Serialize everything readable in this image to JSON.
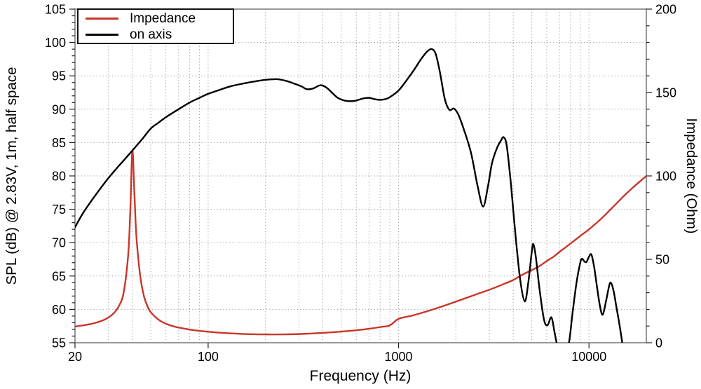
{
  "figure": {
    "background": "#ffffff",
    "frame_color": "#8c8c8c",
    "grid_color": "#9e9e9e",
    "tick_color": "#222222",
    "text_color": "#000000",
    "legend_border": "#111111"
  },
  "chart_data": {
    "type": "line",
    "title": "",
    "xlabel": "Frequency (Hz)",
    "ylabel_left": "SPL (dB) @ 2.83V, 1m, half space",
    "ylabel_right": "Impedance (Ohm)",
    "x_scale": "log",
    "xlim": [
      20,
      20000
    ],
    "ylim_left": [
      55,
      105
    ],
    "ylim_right": [
      0,
      200
    ],
    "x_major_ticks": [
      20,
      100,
      1000,
      10000
    ],
    "x_major_labels": [
      "20",
      "100",
      "1000",
      "10000"
    ],
    "x_minor_ticks": [
      30,
      40,
      50,
      60,
      70,
      80,
      90,
      100,
      200,
      300,
      400,
      500,
      600,
      700,
      800,
      900,
      1000,
      2000,
      3000,
      4000,
      5000,
      6000,
      7000,
      8000,
      9000,
      10000
    ],
    "y_left_major_step": 5,
    "y_left_minor_step": 1,
    "y_left_tick_labels": [
      "55",
      "60",
      "65",
      "70",
      "75",
      "80",
      "85",
      "90",
      "95",
      "100",
      "105"
    ],
    "y_right_major_step": 50,
    "y_right_minor_step": 10,
    "y_right_tick_labels": [
      "0",
      "50",
      "100",
      "150",
      "200"
    ],
    "grid": {
      "horizontal": "left-axis-majors",
      "vertical": "x-minors",
      "style": "dotted"
    },
    "legend": {
      "position": "top-left",
      "entries": [
        "Impedance",
        "on axis"
      ]
    },
    "series": [
      {
        "name": "Impedance",
        "axis": "right",
        "color": "#c9362b",
        "unit": "Ohm",
        "points": [
          [
            20,
            9.7
          ],
          [
            22,
            10.4
          ],
          [
            25,
            11.6
          ],
          [
            28,
            13.4
          ],
          [
            30,
            15.2
          ],
          [
            32,
            17.8
          ],
          [
            34,
            22
          ],
          [
            36,
            30
          ],
          [
            38,
            52
          ],
          [
            39,
            78
          ],
          [
            40,
            115
          ],
          [
            41,
            90
          ],
          [
            42,
            64
          ],
          [
            44,
            40
          ],
          [
            46,
            28
          ],
          [
            48,
            22
          ],
          [
            50,
            18.3
          ],
          [
            55,
            13.8
          ],
          [
            60,
            11.4
          ],
          [
            65,
            10.0
          ],
          [
            70,
            9.1
          ],
          [
            80,
            7.9
          ],
          [
            90,
            7.1
          ],
          [
            100,
            6.6
          ],
          [
            120,
            5.9
          ],
          [
            150,
            5.3
          ],
          [
            200,
            5.0
          ],
          [
            250,
            5.0
          ],
          [
            300,
            5.2
          ],
          [
            400,
            5.9
          ],
          [
            500,
            6.7
          ],
          [
            600,
            7.5
          ],
          [
            700,
            8.4
          ],
          [
            800,
            9.4
          ],
          [
            900,
            10.4
          ],
          [
            1000,
            14.3
          ],
          [
            1200,
            16.5
          ],
          [
            1500,
            19.8
          ],
          [
            1800,
            22.8
          ],
          [
            2100,
            25.5
          ],
          [
            2500,
            28.6
          ],
          [
            3000,
            31.8
          ],
          [
            3500,
            34.8
          ],
          [
            4000,
            37.6
          ],
          [
            4500,
            41.0
          ],
          [
            5000,
            43.5
          ],
          [
            5500,
            46.0
          ],
          [
            6000,
            49.0
          ],
          [
            6500,
            51.5
          ],
          [
            7000,
            54.5
          ],
          [
            7500,
            57.0
          ],
          [
            8000,
            59.5
          ],
          [
            9000,
            64.0
          ],
          [
            10000,
            68.0
          ],
          [
            11000,
            72.0
          ],
          [
            12000,
            76.0
          ],
          [
            13000,
            80.0
          ],
          [
            14000,
            83.7
          ],
          [
            15000,
            87.2
          ],
          [
            16000,
            90.3
          ],
          [
            17000,
            93.0
          ],
          [
            18000,
            95.5
          ],
          [
            19000,
            97.8
          ],
          [
            20000,
            100
          ]
        ]
      },
      {
        "name": "on axis",
        "axis": "left",
        "color": "#000000",
        "unit": "dB",
        "points": [
          [
            20,
            72.3
          ],
          [
            22,
            74.4
          ],
          [
            25,
            76.7
          ],
          [
            28,
            78.6
          ],
          [
            30,
            79.7
          ],
          [
            33,
            81.1
          ],
          [
            36,
            82.3
          ],
          [
            40,
            83.8
          ],
          [
            45,
            85.5
          ],
          [
            50,
            87.1
          ],
          [
            55,
            88.0
          ],
          [
            60,
            88.8
          ],
          [
            70,
            90.0
          ],
          [
            80,
            91.0
          ],
          [
            90,
            91.7
          ],
          [
            100,
            92.3
          ],
          [
            115,
            92.9
          ],
          [
            130,
            93.4
          ],
          [
            150,
            93.8
          ],
          [
            170,
            94.1
          ],
          [
            200,
            94.4
          ],
          [
            230,
            94.5
          ],
          [
            260,
            94.2
          ],
          [
            285,
            93.8
          ],
          [
            310,
            93.4
          ],
          [
            330,
            93.0
          ],
          [
            355,
            93.1
          ],
          [
            390,
            93.6
          ],
          [
            420,
            93.2
          ],
          [
            450,
            92.4
          ],
          [
            480,
            91.7
          ],
          [
            520,
            91.3
          ],
          [
            560,
            91.2
          ],
          [
            600,
            91.3
          ],
          [
            650,
            91.6
          ],
          [
            700,
            91.7
          ],
          [
            750,
            91.5
          ],
          [
            800,
            91.4
          ],
          [
            850,
            91.5
          ],
          [
            900,
            91.8
          ],
          [
            1000,
            92.8
          ],
          [
            1100,
            94.3
          ],
          [
            1200,
            95.8
          ],
          [
            1320,
            97.6
          ],
          [
            1420,
            98.7
          ],
          [
            1500,
            99.0
          ],
          [
            1570,
            98.2
          ],
          [
            1650,
            95.5
          ],
          [
            1750,
            91.5
          ],
          [
            1850,
            89.9
          ],
          [
            1950,
            90.1
          ],
          [
            2060,
            89.2
          ],
          [
            2200,
            87.0
          ],
          [
            2400,
            83.5
          ],
          [
            2600,
            78.5
          ],
          [
            2780,
            75.4
          ],
          [
            2950,
            78.5
          ],
          [
            3100,
            82.0
          ],
          [
            3300,
            84.3
          ],
          [
            3450,
            85.3
          ],
          [
            3560,
            85.8
          ],
          [
            3700,
            84.5
          ],
          [
            3900,
            78.5
          ],
          [
            4100,
            71.5
          ],
          [
            4350,
            64.5
          ],
          [
            4600,
            61.2
          ],
          [
            4800,
            64.0
          ],
          [
            5000,
            68.5
          ],
          [
            5100,
            69.8
          ],
          [
            5250,
            68.0
          ],
          [
            5500,
            63.0
          ],
          [
            5800,
            58.5
          ],
          [
            6050,
            57.6
          ],
          [
            6350,
            58.8
          ],
          [
            6600,
            56.5
          ],
          [
            6850,
            54.3
          ],
          [
            7200,
            52.6
          ],
          [
            7600,
            53.2
          ],
          [
            7900,
            55.5
          ],
          [
            8200,
            59.5
          ],
          [
            8600,
            64.0
          ],
          [
            9000,
            67.0
          ],
          [
            9200,
            67.6
          ],
          [
            9450,
            67.2
          ],
          [
            9700,
            67.1
          ],
          [
            10000,
            67.9
          ],
          [
            10300,
            68.2
          ],
          [
            10650,
            66.3
          ],
          [
            11000,
            63.5
          ],
          [
            11400,
            60.6
          ],
          [
            11800,
            59.2
          ],
          [
            12300,
            61.3
          ],
          [
            12800,
            63.7
          ],
          [
            13100,
            63.9
          ],
          [
            13500,
            62.6
          ],
          [
            13900,
            60.5
          ],
          [
            14400,
            58.0
          ],
          [
            14900,
            55.3
          ],
          [
            15300,
            53.0
          ]
        ]
      }
    ]
  }
}
